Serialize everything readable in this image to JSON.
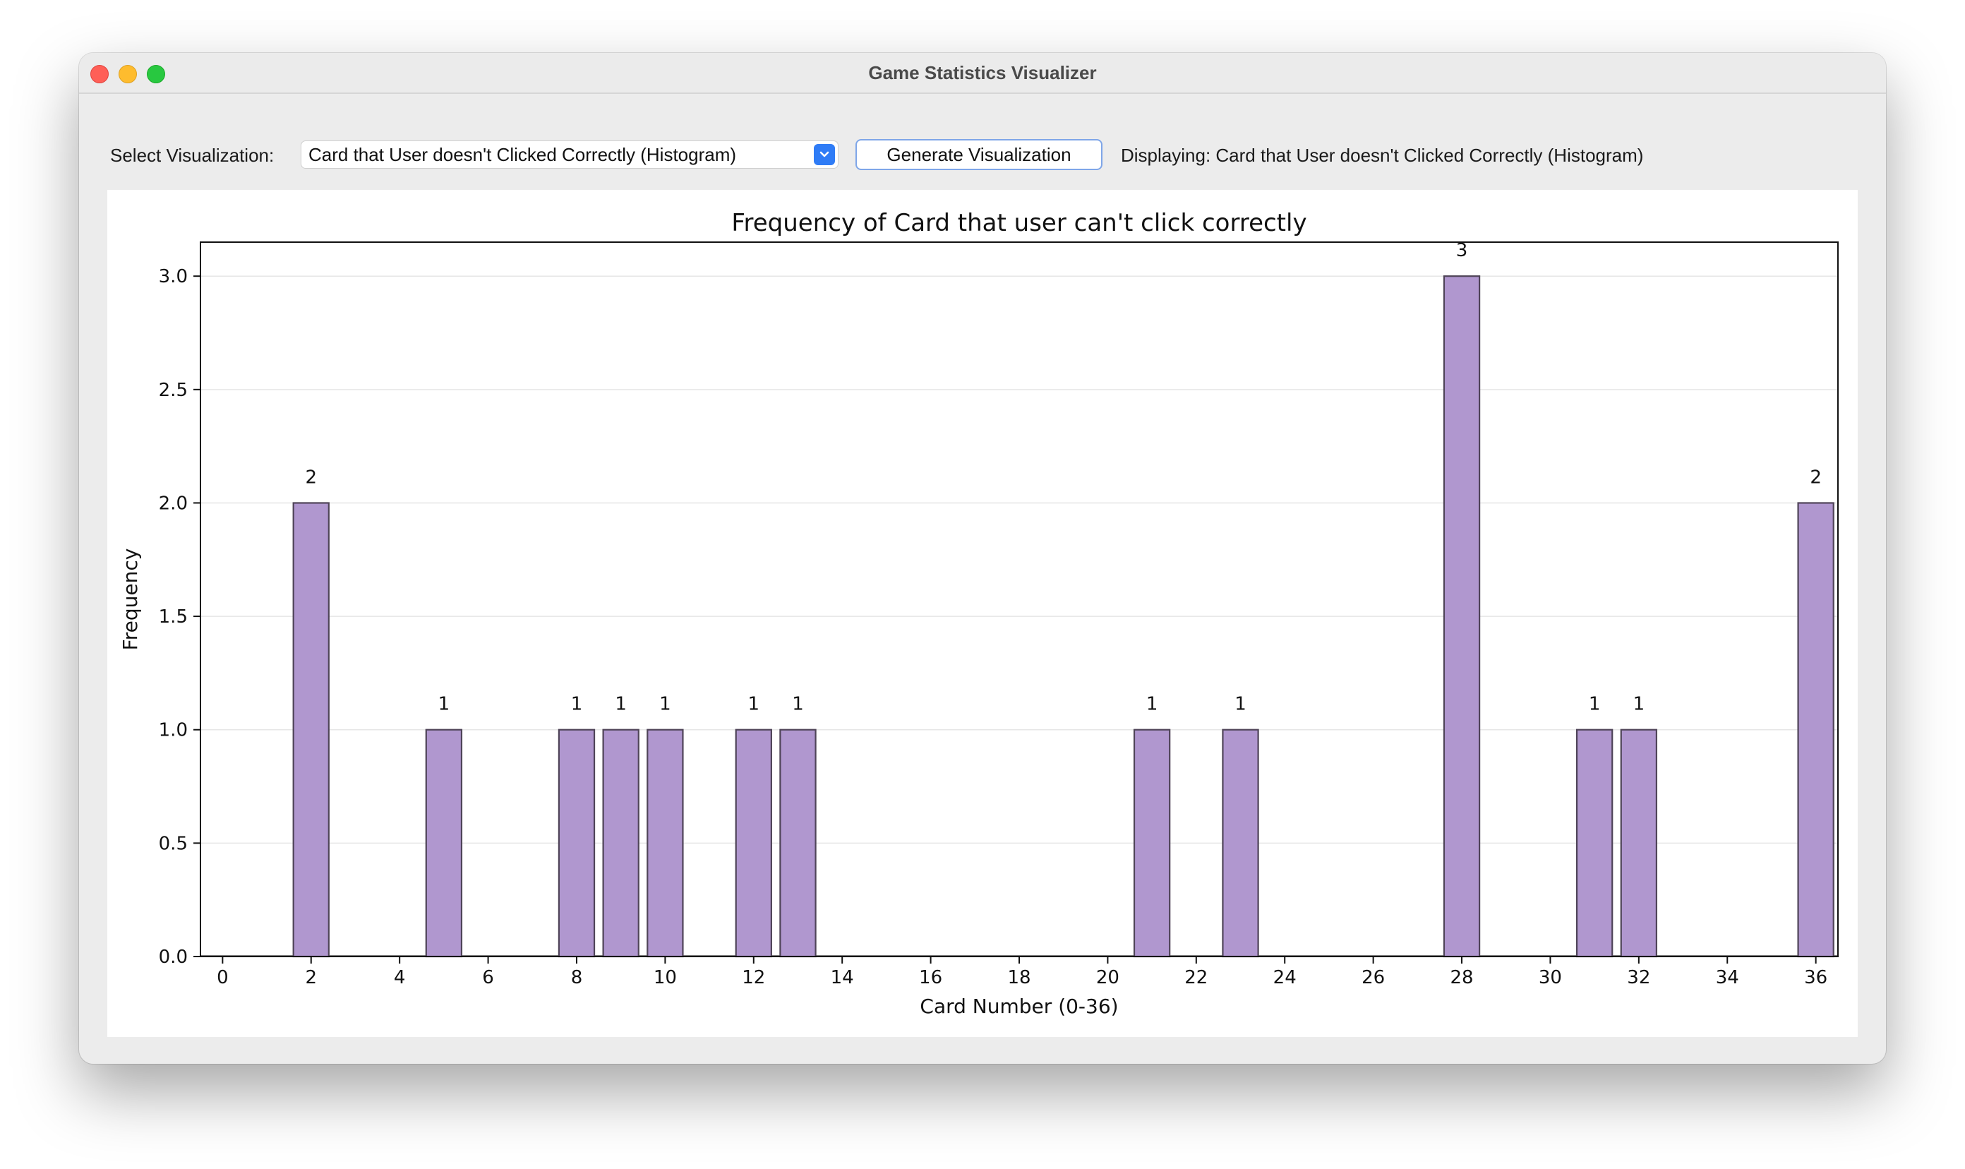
{
  "window": {
    "title": "Game Statistics Visualizer"
  },
  "toolbar": {
    "select_label": "Select Visualization:",
    "select_value": "Card that User doesn't Clicked Correctly (Histogram)",
    "generate_label": "Generate Visualization",
    "status": "Displaying: Card that User doesn't Clicked Correctly (Histogram)"
  },
  "icons": {
    "close": "close-icon",
    "minimize": "minimize-icon",
    "maximize": "maximize-icon",
    "dropdown": "chevron-down-icon"
  },
  "chart_data": {
    "type": "bar",
    "title": "Frequency of Card that user can't click correctly",
    "xlabel": "Card Number (0-36)",
    "ylabel": "Frequency",
    "xlim": [
      -0.5,
      36.5
    ],
    "ylim": [
      0,
      3.15
    ],
    "x_ticks": [
      0,
      2,
      4,
      6,
      8,
      10,
      12,
      14,
      16,
      18,
      20,
      22,
      24,
      26,
      28,
      30,
      32,
      34,
      36
    ],
    "y_ticks": [
      0.0,
      0.5,
      1.0,
      1.5,
      2.0,
      2.5,
      3.0
    ],
    "y_tick_labels": [
      "0.0",
      "0.5",
      "1.0",
      "1.5",
      "2.0",
      "2.5",
      "3.0"
    ],
    "grid": "horizontal",
    "bar_color": "#b097cf",
    "bar_edge_color": "#4f4458",
    "categories": [
      2,
      5,
      8,
      9,
      10,
      12,
      13,
      21,
      23,
      28,
      31,
      32,
      36
    ],
    "values": [
      2,
      1,
      1,
      1,
      1,
      1,
      1,
      1,
      1,
      3,
      1,
      1,
      2
    ],
    "data_labels": [
      "2",
      "1",
      "1",
      "1",
      "1",
      "1",
      "1",
      "1",
      "1",
      "3",
      "1",
      "1",
      "2"
    ]
  }
}
